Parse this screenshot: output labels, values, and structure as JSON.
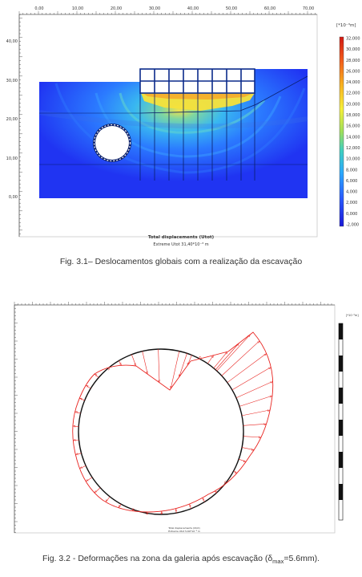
{
  "figure1": {
    "top_ticks": [
      "0,00",
      "10,00",
      "20,00",
      "30,00",
      "40,00",
      "50,00",
      "60,00",
      "70,00"
    ],
    "left_ticks": [
      "40,00",
      "30,00",
      "20,00",
      "10,00",
      "0,00"
    ],
    "legend_unit": "[*10⁻³m]",
    "legend_values": [
      "32,000",
      "30,000",
      "28,000",
      "26,000",
      "24,000",
      "22,000",
      "20,000",
      "18,000",
      "16,000",
      "14,000",
      "12,000",
      "10,000",
      "8,000",
      "6,000",
      "4,000",
      "2,000",
      "0,000",
      "-2,000"
    ],
    "plot_title": "Total displacements (Utot)",
    "plot_subtitle": "Extreme Utot 31,40*10⁻³ m",
    "caption": "Fig. 3.1– Deslocamentos globais com a realização da escavação"
  },
  "figure2": {
    "legend_unit": "[*10⁻³m]",
    "plot_title": "Total displacements (Utot)",
    "plot_subtitle": "Extreme Utot 5,60*10⁻³ m",
    "caption_prefix": "Fig. 3.2 - Deformações na zona da galeria após escavação (δ",
    "caption_sub": "max",
    "caption_suffix": "=5.6mm)."
  },
  "colors": {
    "deep_blue": "#1a2cff",
    "red": "#e8231f",
    "grid": "#0a2a8a"
  }
}
